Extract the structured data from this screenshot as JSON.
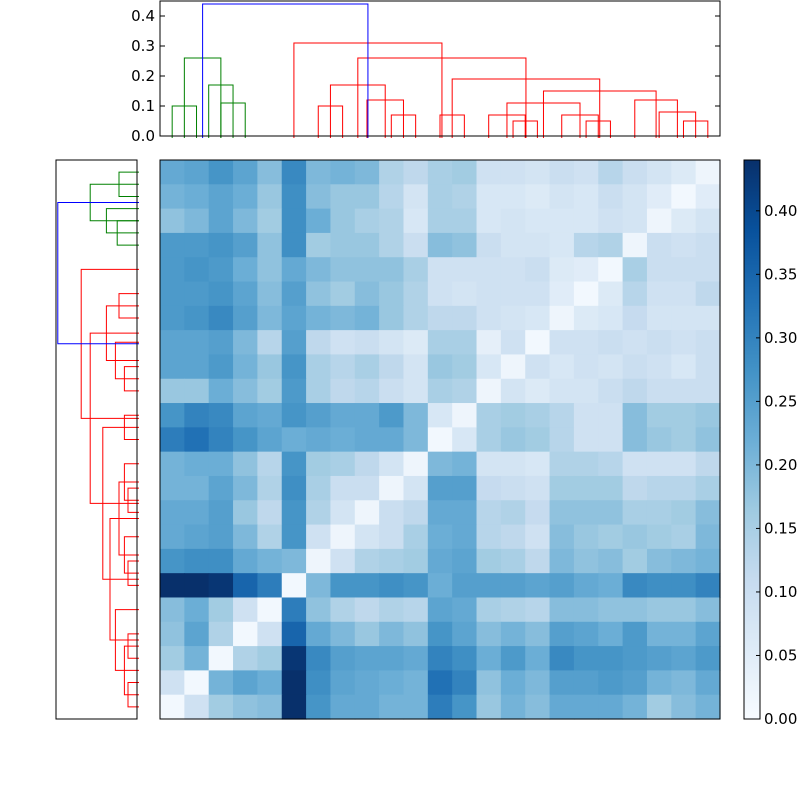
{
  "chart_data": {
    "type": "heatmap",
    "title": "",
    "description_free": true,
    "n": 23,
    "colormap": "Blues",
    "colors": {
      "cmap_low": "#f7fbff",
      "cmap_high": "#08306b",
      "link_above_threshold": "#0000ff",
      "cluster_a": "#008000",
      "cluster_b": "#ff0000",
      "frame": "#000000"
    },
    "top_dendrogram": {
      "ylim": [
        0,
        0.45
      ],
      "yticks": [
        "0.0",
        "0.1",
        "0.2",
        "0.3",
        "0.4"
      ],
      "ytick_values": [
        0,
        0.1,
        0.2,
        0.3,
        0.4
      ],
      "links": [
        {
          "left": 0.5,
          "right": 1.5,
          "height": 0.1,
          "color": "green"
        },
        {
          "left": 2.5,
          "right": 3.5,
          "height": 0.11,
          "color": "green"
        },
        {
          "left": 2,
          "right": 3,
          "height": 0.17,
          "color": "green"
        },
        {
          "left": 1,
          "right": 2.5,
          "height": 0.26,
          "color": "green"
        },
        {
          "left": 6.5,
          "right": 7.5,
          "height": 0.1,
          "color": "red"
        },
        {
          "left": 9.5,
          "right": 10.5,
          "height": 0.07,
          "color": "red"
        },
        {
          "left": 8.5,
          "right": 10,
          "height": 0.12,
          "color": "red"
        },
        {
          "left": 7,
          "right": 9.25,
          "height": 0.17,
          "color": "red"
        },
        {
          "left": 11.5,
          "right": 12.5,
          "height": 0.07,
          "color": "red"
        },
        {
          "left": 14.5,
          "right": 15.5,
          "height": 0.05,
          "color": "red"
        },
        {
          "left": 13.5,
          "right": 15,
          "height": 0.07,
          "color": "red"
        },
        {
          "left": 17.5,
          "right": 18.5,
          "height": 0.05,
          "color": "red"
        },
        {
          "left": 16.5,
          "right": 18,
          "height": 0.07,
          "color": "red"
        },
        {
          "left": 14.25,
          "right": 17.25,
          "height": 0.11,
          "color": "red"
        },
        {
          "left": 21.5,
          "right": 22.5,
          "height": 0.05,
          "color": "red"
        },
        {
          "left": 20.5,
          "right": 22,
          "height": 0.08,
          "color": "red"
        },
        {
          "left": 19.5,
          "right": 21.25,
          "height": 0.12,
          "color": "red"
        },
        {
          "left": 15.75,
          "right": 20.375,
          "height": 0.15,
          "color": "red"
        },
        {
          "left": 12,
          "right": 18.06,
          "height": 0.19,
          "color": "red"
        },
        {
          "left": 8.125,
          "right": 15.03,
          "height": 0.26,
          "color": "red"
        },
        {
          "left": 5.5,
          "right": 11.58,
          "height": 0.31,
          "color": "red"
        },
        {
          "left": 1.75,
          "right": 8.54,
          "height": 0.44,
          "color": "blue"
        }
      ]
    },
    "left_dendrogram": {
      "orientation": "left",
      "xlim": [
        0,
        0.45
      ],
      "links": [
        {
          "left": 0.5,
          "right": 1.5,
          "height": 0.1,
          "color": "green"
        },
        {
          "left": 2.5,
          "right": 3.5,
          "height": 0.11,
          "color": "green"
        },
        {
          "left": 2,
          "right": 3,
          "height": 0.17,
          "color": "green"
        },
        {
          "left": 1,
          "right": 2.5,
          "height": 0.26,
          "color": "green"
        },
        {
          "left": 5.5,
          "right": 6.5,
          "height": 0.1,
          "color": "red"
        },
        {
          "left": 8.5,
          "right": 9.5,
          "height": 0.07,
          "color": "red"
        },
        {
          "left": 7.5,
          "right": 9,
          "height": 0.12,
          "color": "red"
        },
        {
          "left": 6,
          "right": 8.25,
          "height": 0.17,
          "color": "red"
        },
        {
          "left": 10.5,
          "right": 11.5,
          "height": 0.07,
          "color": "red"
        },
        {
          "left": 13.5,
          "right": 14.5,
          "height": 0.05,
          "color": "red"
        },
        {
          "left": 12.5,
          "right": 14,
          "height": 0.07,
          "color": "red"
        },
        {
          "left": 16.5,
          "right": 17.5,
          "height": 0.05,
          "color": "red"
        },
        {
          "left": 15.5,
          "right": 17,
          "height": 0.07,
          "color": "red"
        },
        {
          "left": 13.25,
          "right": 16.25,
          "height": 0.1,
          "color": "red"
        },
        {
          "left": 19.5,
          "right": 20.5,
          "height": 0.05,
          "color": "red"
        },
        {
          "left": 21.5,
          "right": 22.5,
          "height": 0.05,
          "color": "red"
        },
        {
          "left": 20,
          "right": 22,
          "height": 0.07,
          "color": "red"
        },
        {
          "left": 18.5,
          "right": 21,
          "height": 0.12,
          "color": "red"
        },
        {
          "left": 14.75,
          "right": 19.75,
          "height": 0.15,
          "color": "red"
        },
        {
          "left": 11,
          "right": 17.25,
          "height": 0.19,
          "color": "red"
        },
        {
          "left": 7.125,
          "right": 14.13,
          "height": 0.26,
          "color": "red"
        },
        {
          "left": 4.5,
          "right": 10.63,
          "height": 0.31,
          "color": "red"
        },
        {
          "left": 1.75,
          "right": 7.56,
          "height": 0.44,
          "color": "blue"
        }
      ]
    },
    "colorbar": {
      "vmin": 0.0,
      "vmax": 0.44,
      "ticks": [
        "0.00",
        "0.05",
        "0.10",
        "0.15",
        "0.20",
        "0.25",
        "0.30",
        "0.35",
        "0.40"
      ],
      "tick_values": [
        0,
        0.05,
        0.1,
        0.15,
        0.2,
        0.25,
        0.3,
        0.35,
        0.4
      ]
    },
    "matrix": [
      [
        0.23,
        0.24,
        0.27,
        0.24,
        0.19,
        0.29,
        0.2,
        0.21,
        0.2,
        0.14,
        0.12,
        0.15,
        0.16,
        0.09,
        0.09,
        0.08,
        0.1,
        0.09,
        0.13,
        0.1,
        0.08,
        0.06,
        0.02
      ],
      [
        0.21,
        0.22,
        0.24,
        0.22,
        0.17,
        0.28,
        0.19,
        0.17,
        0.17,
        0.13,
        0.08,
        0.15,
        0.14,
        0.07,
        0.07,
        0.06,
        0.08,
        0.07,
        0.1,
        0.08,
        0.05,
        0.01,
        0.05
      ],
      [
        0.18,
        0.2,
        0.24,
        0.2,
        0.16,
        0.28,
        0.22,
        0.17,
        0.15,
        0.14,
        0.07,
        0.15,
        0.15,
        0.07,
        0.08,
        0.07,
        0.07,
        0.07,
        0.09,
        0.08,
        0.02,
        0.06,
        0.08
      ],
      [
        0.26,
        0.26,
        0.27,
        0.25,
        0.18,
        0.28,
        0.16,
        0.17,
        0.17,
        0.14,
        0.1,
        0.19,
        0.18,
        0.1,
        0.08,
        0.08,
        0.07,
        0.13,
        0.14,
        0.02,
        0.1,
        0.09,
        0.1
      ],
      [
        0.26,
        0.27,
        0.26,
        0.22,
        0.18,
        0.23,
        0.2,
        0.18,
        0.18,
        0.18,
        0.15,
        0.09,
        0.09,
        0.09,
        0.09,
        0.1,
        0.06,
        0.05,
        0.01,
        0.15,
        0.1,
        0.1,
        0.1
      ],
      [
        0.26,
        0.26,
        0.27,
        0.24,
        0.19,
        0.25,
        0.18,
        0.16,
        0.19,
        0.17,
        0.14,
        0.09,
        0.08,
        0.09,
        0.09,
        0.09,
        0.05,
        0.01,
        0.06,
        0.13,
        0.09,
        0.09,
        0.12
      ],
      [
        0.26,
        0.27,
        0.29,
        0.25,
        0.2,
        0.24,
        0.21,
        0.2,
        0.21,
        0.17,
        0.14,
        0.12,
        0.12,
        0.09,
        0.08,
        0.07,
        0.02,
        0.06,
        0.07,
        0.11,
        0.08,
        0.08,
        0.08
      ],
      [
        0.24,
        0.24,
        0.25,
        0.2,
        0.13,
        0.25,
        0.12,
        0.09,
        0.1,
        0.08,
        0.06,
        0.15,
        0.15,
        0.04,
        0.09,
        0.01,
        0.09,
        0.09,
        0.1,
        0.09,
        0.1,
        0.09,
        0.1
      ],
      [
        0.24,
        0.24,
        0.26,
        0.21,
        0.17,
        0.27,
        0.15,
        0.13,
        0.15,
        0.12,
        0.08,
        0.17,
        0.16,
        0.07,
        0.02,
        0.09,
        0.07,
        0.09,
        0.08,
        0.1,
        0.09,
        0.07,
        0.1
      ],
      [
        0.17,
        0.17,
        0.22,
        0.19,
        0.16,
        0.26,
        0.15,
        0.12,
        0.13,
        0.1,
        0.08,
        0.15,
        0.14,
        0.02,
        0.08,
        0.06,
        0.08,
        0.08,
        0.1,
        0.12,
        0.1,
        0.1,
        0.1
      ],
      [
        0.27,
        0.3,
        0.29,
        0.24,
        0.23,
        0.27,
        0.25,
        0.23,
        0.23,
        0.26,
        0.2,
        0.07,
        0.02,
        0.15,
        0.16,
        0.15,
        0.13,
        0.09,
        0.09,
        0.19,
        0.16,
        0.16,
        0.17
      ],
      [
        0.31,
        0.33,
        0.3,
        0.27,
        0.24,
        0.22,
        0.23,
        0.22,
        0.23,
        0.23,
        0.2,
        0.01,
        0.07,
        0.15,
        0.17,
        0.16,
        0.13,
        0.09,
        0.09,
        0.19,
        0.17,
        0.16,
        0.18
      ],
      [
        0.21,
        0.22,
        0.22,
        0.18,
        0.13,
        0.27,
        0.16,
        0.15,
        0.12,
        0.08,
        0.02,
        0.2,
        0.21,
        0.08,
        0.08,
        0.07,
        0.14,
        0.14,
        0.13,
        0.09,
        0.09,
        0.09,
        0.12
      ],
      [
        0.21,
        0.21,
        0.24,
        0.2,
        0.14,
        0.28,
        0.15,
        0.1,
        0.1,
        0.02,
        0.08,
        0.25,
        0.25,
        0.11,
        0.1,
        0.09,
        0.16,
        0.16,
        0.16,
        0.12,
        0.13,
        0.13,
        0.15
      ],
      [
        0.23,
        0.23,
        0.25,
        0.17,
        0.12,
        0.27,
        0.14,
        0.08,
        0.02,
        0.1,
        0.12,
        0.23,
        0.23,
        0.13,
        0.14,
        0.11,
        0.18,
        0.18,
        0.18,
        0.15,
        0.15,
        0.16,
        0.19
      ],
      [
        0.23,
        0.24,
        0.25,
        0.2,
        0.14,
        0.27,
        0.09,
        0.02,
        0.08,
        0.1,
        0.15,
        0.22,
        0.23,
        0.13,
        0.12,
        0.09,
        0.19,
        0.17,
        0.16,
        0.17,
        0.16,
        0.15,
        0.2
      ],
      [
        0.27,
        0.28,
        0.28,
        0.23,
        0.21,
        0.2,
        0.02,
        0.09,
        0.14,
        0.15,
        0.16,
        0.23,
        0.24,
        0.16,
        0.15,
        0.12,
        0.2,
        0.18,
        0.19,
        0.16,
        0.19,
        0.2,
        0.21
      ],
      [
        0.44,
        0.44,
        0.43,
        0.35,
        0.31,
        0.01,
        0.2,
        0.27,
        0.27,
        0.28,
        0.27,
        0.22,
        0.25,
        0.25,
        0.25,
        0.24,
        0.25,
        0.23,
        0.22,
        0.29,
        0.28,
        0.28,
        0.3
      ],
      [
        0.19,
        0.22,
        0.16,
        0.09,
        0.01,
        0.31,
        0.18,
        0.14,
        0.12,
        0.14,
        0.13,
        0.24,
        0.23,
        0.15,
        0.14,
        0.13,
        0.19,
        0.19,
        0.18,
        0.18,
        0.17,
        0.17,
        0.19
      ],
      [
        0.18,
        0.24,
        0.14,
        0.01,
        0.09,
        0.35,
        0.23,
        0.2,
        0.17,
        0.2,
        0.18,
        0.27,
        0.24,
        0.19,
        0.21,
        0.19,
        0.25,
        0.24,
        0.22,
        0.26,
        0.21,
        0.21,
        0.24
      ],
      [
        0.16,
        0.21,
        0.01,
        0.14,
        0.16,
        0.43,
        0.29,
        0.25,
        0.24,
        0.24,
        0.23,
        0.3,
        0.28,
        0.22,
        0.26,
        0.22,
        0.29,
        0.27,
        0.27,
        0.26,
        0.25,
        0.24,
        0.26
      ],
      [
        0.09,
        0.01,
        0.21,
        0.24,
        0.22,
        0.44,
        0.28,
        0.24,
        0.23,
        0.22,
        0.21,
        0.33,
        0.3,
        0.18,
        0.22,
        0.2,
        0.25,
        0.25,
        0.26,
        0.25,
        0.21,
        0.2,
        0.23
      ],
      [
        0.01,
        0.09,
        0.16,
        0.18,
        0.19,
        0.44,
        0.27,
        0.23,
        0.23,
        0.21,
        0.21,
        0.31,
        0.27,
        0.17,
        0.21,
        0.19,
        0.23,
        0.23,
        0.23,
        0.21,
        0.16,
        0.19,
        0.21
      ]
    ]
  }
}
